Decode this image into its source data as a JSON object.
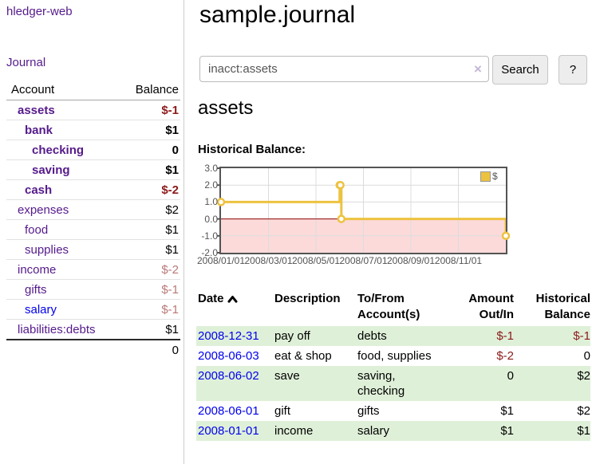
{
  "app": {
    "brand": "hledger-web",
    "nav_journal": "Journal"
  },
  "sidebar": {
    "header": {
      "account": "Account",
      "balance": "Balance"
    },
    "accounts": [
      {
        "name": "assets",
        "indent": 1,
        "bold": true,
        "balance": "$-1",
        "neg": "neg-strong",
        "link": "purple"
      },
      {
        "name": "bank",
        "indent": 2,
        "bold": true,
        "balance": "$1",
        "neg": "",
        "link": "purple"
      },
      {
        "name": "checking",
        "indent": 3,
        "bold": true,
        "balance": "0",
        "neg": "",
        "link": "purple"
      },
      {
        "name": "saving",
        "indent": 3,
        "bold": true,
        "balance": "$1",
        "neg": "",
        "link": "purple"
      },
      {
        "name": "cash",
        "indent": 2,
        "bold": true,
        "balance": "$-2",
        "neg": "neg-strong",
        "link": "purple"
      },
      {
        "name": "expenses",
        "indent": 1,
        "bold": false,
        "balance": "$2",
        "neg": "",
        "link": "purple"
      },
      {
        "name": "food",
        "indent": 2,
        "bold": false,
        "balance": "$1",
        "neg": "",
        "link": "purple"
      },
      {
        "name": "supplies",
        "indent": 2,
        "bold": false,
        "balance": "$1",
        "neg": "",
        "link": "purple"
      },
      {
        "name": "income",
        "indent": 1,
        "bold": false,
        "balance": "$-2",
        "neg": "neg-soft",
        "link": "purple"
      },
      {
        "name": "gifts",
        "indent": 2,
        "bold": false,
        "balance": "$-1",
        "neg": "neg-soft",
        "link": "purple"
      },
      {
        "name": "salary",
        "indent": 2,
        "bold": false,
        "balance": "$-1",
        "neg": "neg-soft",
        "link": "blue"
      },
      {
        "name": "liabilities:debts",
        "indent": 1,
        "bold": false,
        "balance": "$1",
        "neg": "",
        "link": "purple"
      }
    ],
    "total": "0"
  },
  "header": {
    "title": "sample.journal"
  },
  "search": {
    "value": "inacct:assets",
    "clear_icon": "×",
    "button": "Search",
    "help_button": "?"
  },
  "account_page": {
    "title": "assets",
    "chart_label": "Historical Balance:"
  },
  "chart_data": {
    "type": "line",
    "title": "Historical Balance:",
    "x_unit": "months since 2008/01/01",
    "xlim": [
      0,
      12
    ],
    "ylim": [
      -2,
      3
    ],
    "grid": true,
    "legend": {
      "label": "$",
      "position": "top-right"
    },
    "series": [
      {
        "name": "$",
        "color": "#edc240",
        "step": true,
        "points": [
          {
            "date": "2008/01/01",
            "x": 0,
            "y": 1
          },
          {
            "date": "2008/06/01",
            "x": 5,
            "y": 2
          },
          {
            "date": "2008/06/02",
            "x": 5.03,
            "y": 2
          },
          {
            "date": "2008/06/03",
            "x": 5.07,
            "y": 0
          },
          {
            "date": "2008/12/31",
            "x": 12,
            "y": -1
          }
        ]
      }
    ],
    "yticks": [
      {
        "v": 3,
        "label": "3.0"
      },
      {
        "v": 2,
        "label": "2.0"
      },
      {
        "v": 1,
        "label": "1.0"
      },
      {
        "v": 0,
        "label": "0.0"
      },
      {
        "v": -1,
        "label": "-1.0"
      },
      {
        "v": -2,
        "label": "-2.0"
      }
    ],
    "xticks": [
      {
        "v": 0,
        "label": "2008/01/01"
      },
      {
        "v": 2,
        "label": "2008/03/01"
      },
      {
        "v": 4,
        "label": "2008/05/01"
      },
      {
        "v": 6,
        "label": "2008/07/01"
      },
      {
        "v": 8,
        "label": "2008/09/01"
      },
      {
        "v": 10,
        "label": "2008/11/01"
      }
    ],
    "negative_region": {
      "from": 0,
      "to": -2,
      "color": "#fcdada",
      "zero_line_color": "#8b0000"
    },
    "colors": {
      "grid": "#dcdcdc",
      "border": "#545454"
    }
  },
  "register": {
    "columns": [
      "Date",
      "Description",
      "To/From Account(s)",
      "Amount Out/In",
      "Historical Balance"
    ],
    "rows": [
      {
        "date": "2008-12-31",
        "description": "pay off",
        "accounts": "debts",
        "amount": "$-1",
        "balance": "$-1"
      },
      {
        "date": "2008-06-03",
        "description": "eat & shop",
        "accounts": "food, supplies",
        "amount": "$-2",
        "balance": "0"
      },
      {
        "date": "2008-06-02",
        "description": "save",
        "accounts": "saving, checking",
        "amount": "0",
        "balance": "$2"
      },
      {
        "date": "2008-06-01",
        "description": "gift",
        "accounts": "gifts",
        "amount": "$1",
        "balance": "$2"
      },
      {
        "date": "2008-01-01",
        "description": "income",
        "accounts": "salary",
        "amount": "$1",
        "balance": "$1"
      }
    ]
  }
}
